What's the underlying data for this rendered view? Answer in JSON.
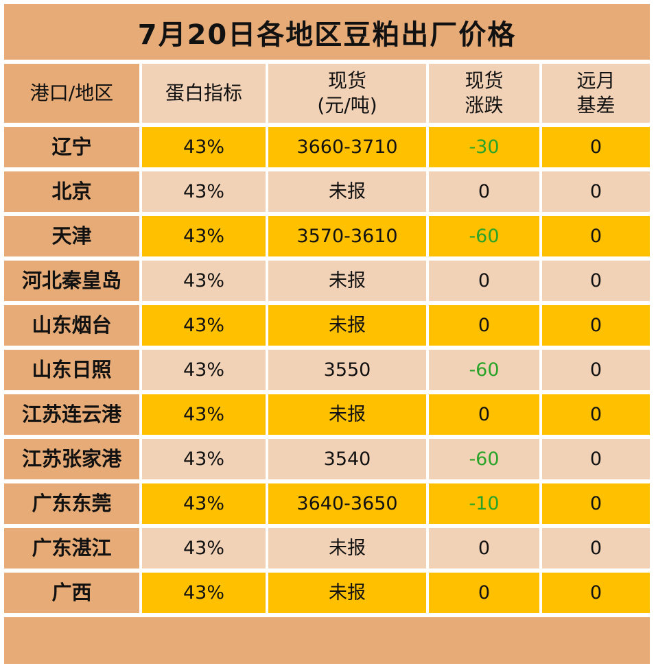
{
  "title": "7月20日各地区豆粕出厂价格",
  "headers": {
    "region": "港口/地区",
    "protein": "蛋白指标",
    "spot_line1": "现货",
    "spot_line2": "(元/吨)",
    "change_line1": "现货",
    "change_line2": "涨跌",
    "basis_line1": "远月",
    "basis_line2": "基差"
  },
  "rows": [
    {
      "region": "辽宁",
      "protein": "43%",
      "spot": "3660-3710",
      "change": "-30",
      "basis": "0",
      "style": "gold",
      "down": true
    },
    {
      "region": "北京",
      "protein": "43%",
      "spot": "未报",
      "change": "0",
      "basis": "0",
      "style": "light",
      "down": false
    },
    {
      "region": "天津",
      "protein": "43%",
      "spot": "3570-3610",
      "change": "-60",
      "basis": "0",
      "style": "gold",
      "down": true
    },
    {
      "region": "河北秦皇岛",
      "protein": "43%",
      "spot": "未报",
      "change": "0",
      "basis": "0",
      "style": "light",
      "down": false
    },
    {
      "region": "山东烟台",
      "protein": "43%",
      "spot": "未报",
      "change": "0",
      "basis": "0",
      "style": "gold",
      "down": false
    },
    {
      "region": "山东日照",
      "protein": "43%",
      "spot": "3550",
      "change": "-60",
      "basis": "0",
      "style": "light",
      "down": true
    },
    {
      "region": "江苏连云港",
      "protein": "43%",
      "spot": "未报",
      "change": "0",
      "basis": "0",
      "style": "gold",
      "down": false
    },
    {
      "region": "江苏张家港",
      "protein": "43%",
      "spot": "3540",
      "change": "-60",
      "basis": "0",
      "style": "light",
      "down": true
    },
    {
      "region": "广东东莞",
      "protein": "43%",
      "spot": "3640-3650",
      "change": "-10",
      "basis": "0",
      "style": "gold",
      "down": true
    },
    {
      "region": "广东湛江",
      "protein": "43%",
      "spot": "未报",
      "change": "0",
      "basis": "0",
      "style": "light",
      "down": false
    },
    {
      "region": "广西",
      "protein": "43%",
      "spot": "未报",
      "change": "0",
      "basis": "0",
      "style": "gold",
      "down": false
    }
  ],
  "colors": {
    "header_accent": "#e6ab77",
    "row_gold": "#ffc000",
    "row_light": "#f2d2b7",
    "change_down": "#2aa329"
  }
}
